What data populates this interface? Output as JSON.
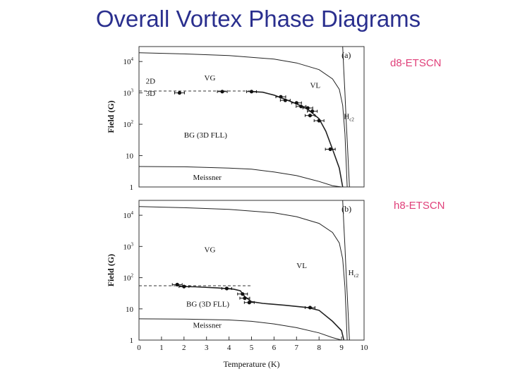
{
  "title": "Overall Vortex Phase Diagrams",
  "labels": {
    "d8": "d8-ETSCN",
    "h8": "h8-ETSCN"
  },
  "chart_data": [
    {
      "type": "scatter",
      "panel": "(a)",
      "xlim": [
        0,
        10
      ],
      "ylim": [
        1,
        30000
      ],
      "yscale": "log",
      "ylabel": "Field (G)",
      "yticks": [
        {
          "v": 1,
          "t": "1"
        },
        {
          "v": 10,
          "t": "10"
        },
        {
          "v": 100,
          "t": "10",
          "e": "2"
        },
        {
          "v": 1000,
          "t": "10",
          "e": "3"
        },
        {
          "v": 10000,
          "t": "10",
          "e": "4"
        }
      ],
      "region_labels": [
        {
          "t": "VG",
          "x": 2.9,
          "y": 2500
        },
        {
          "t": "VL",
          "x": 7.6,
          "y": 1450
        },
        {
          "t": "2D",
          "x": 0.3,
          "y": 2000
        },
        {
          "t": "3D",
          "x": 0.3,
          "y": 800
        },
        {
          "t": "BG (3D FLL)",
          "x": 2.0,
          "y": 38
        },
        {
          "t": "Meissner",
          "x": 2.4,
          "y": 1.7
        },
        {
          "t": "H",
          "sub": "c2",
          "x": 9.1,
          "y": 150
        }
      ],
      "dimensional_crossover": 1150,
      "points": [
        {
          "x": 1.8,
          "y": 1000
        },
        {
          "x": 3.7,
          "y": 1100
        },
        {
          "x": 5.0,
          "y": 1100
        },
        {
          "x": 6.3,
          "y": 750
        },
        {
          "x": 6.5,
          "y": 580
        },
        {
          "x": 7.0,
          "y": 480
        },
        {
          "x": 7.2,
          "y": 370
        },
        {
          "x": 7.5,
          "y": 330
        },
        {
          "x": 7.7,
          "y": 260
        },
        {
          "x": 7.6,
          "y": 190
        },
        {
          "x": 8.0,
          "y": 130
        },
        {
          "x": 8.5,
          "y": 16
        }
      ],
      "glass_line": [
        [
          5.0,
          1100
        ],
        [
          5.5,
          1050
        ],
        [
          6.0,
          850
        ],
        [
          6.5,
          620
        ],
        [
          7.0,
          450
        ],
        [
          7.5,
          300
        ],
        [
          8.0,
          150
        ],
        [
          8.3,
          60
        ],
        [
          8.6,
          16
        ],
        [
          8.9,
          4
        ],
        [
          9.05,
          1
        ]
      ],
      "upper_line": [
        [
          0,
          19000
        ],
        [
          2,
          17500
        ],
        [
          4,
          15500
        ],
        [
          6,
          12000
        ],
        [
          7,
          9000
        ],
        [
          8,
          5500
        ],
        [
          8.6,
          2800
        ],
        [
          8.9,
          1300
        ],
        [
          9.05,
          400
        ],
        [
          9.15,
          50
        ],
        [
          9.25,
          1
        ]
      ],
      "hc2_line": [
        [
          9.05,
          30000
        ],
        [
          9.1,
          5000
        ],
        [
          9.15,
          1000
        ],
        [
          9.2,
          150
        ],
        [
          9.25,
          30
        ],
        [
          9.35,
          1
        ]
      ],
      "meissner_line": [
        [
          0,
          4.5
        ],
        [
          2,
          4.4
        ],
        [
          4,
          4.0
        ],
        [
          5,
          3.7
        ],
        [
          6,
          3.0
        ],
        [
          7,
          2.3
        ],
        [
          8,
          1.5
        ],
        [
          8.6,
          1.1
        ],
        [
          9.0,
          1
        ]
      ]
    },
    {
      "type": "scatter",
      "panel": "(b)",
      "xlim": [
        0,
        10
      ],
      "ylim": [
        1,
        30000
      ],
      "yscale": "log",
      "xlabel": "Temperature (K)",
      "ylabel": "Field (G)",
      "xticks": [
        0,
        1,
        2,
        3,
        4,
        5,
        6,
        7,
        8,
        9,
        10
      ],
      "yticks": [
        {
          "v": 1,
          "t": "1"
        },
        {
          "v": 10,
          "t": "10"
        },
        {
          "v": 100,
          "t": "10",
          "e": "2"
        },
        {
          "v": 1000,
          "t": "10",
          "e": "3"
        },
        {
          "v": 10000,
          "t": "10",
          "e": "4"
        }
      ],
      "region_labels": [
        {
          "t": "VG",
          "x": 2.9,
          "y": 650
        },
        {
          "t": "VL",
          "x": 7.0,
          "y": 200
        },
        {
          "t": "BG (3D FLL)",
          "x": 2.1,
          "y": 12
        },
        {
          "t": "Meissner",
          "x": 2.4,
          "y": 2.5
        },
        {
          "t": "H",
          "sub": "c2",
          "x": 9.3,
          "y": 120
        }
      ],
      "dimensional_crossover": 55,
      "points": [
        {
          "x": 1.7,
          "y": 60
        },
        {
          "x": 2.0,
          "y": 52
        },
        {
          "x": 3.9,
          "y": 45
        },
        {
          "x": 4.6,
          "y": 30
        },
        {
          "x": 4.7,
          "y": 22
        },
        {
          "x": 4.9,
          "y": 16
        },
        {
          "x": 7.6,
          "y": 11
        }
      ],
      "glass_line": [
        [
          1.8,
          52
        ],
        [
          2.5,
          51
        ],
        [
          3.5,
          47
        ],
        [
          4.2,
          43
        ],
        [
          4.5,
          38
        ],
        [
          4.7,
          25
        ],
        [
          5.0,
          17
        ],
        [
          5.5,
          15
        ],
        [
          6.5,
          13
        ],
        [
          7.5,
          11
        ],
        [
          8.0,
          9
        ],
        [
          8.6,
          4
        ],
        [
          9.0,
          2
        ],
        [
          9.1,
          1
        ]
      ],
      "upper_line": [
        [
          0,
          19000
        ],
        [
          2,
          17500
        ],
        [
          4,
          15500
        ],
        [
          6,
          12000
        ],
        [
          7,
          9000
        ],
        [
          8,
          5500
        ],
        [
          8.6,
          2800
        ],
        [
          8.9,
          1300
        ],
        [
          9.05,
          400
        ],
        [
          9.15,
          50
        ],
        [
          9.25,
          1
        ]
      ],
      "hc2_line": [
        [
          9.05,
          30000
        ],
        [
          9.1,
          5000
        ],
        [
          9.15,
          1000
        ],
        [
          9.2,
          150
        ],
        [
          9.25,
          30
        ],
        [
          9.35,
          1
        ]
      ],
      "meissner_line": [
        [
          0,
          4.8
        ],
        [
          2,
          4.7
        ],
        [
          4,
          4.4
        ],
        [
          5,
          4.0
        ],
        [
          6,
          3.3
        ],
        [
          7,
          2.5
        ],
        [
          8,
          1.7
        ],
        [
          8.6,
          1.2
        ],
        [
          9.0,
          1
        ]
      ]
    }
  ]
}
